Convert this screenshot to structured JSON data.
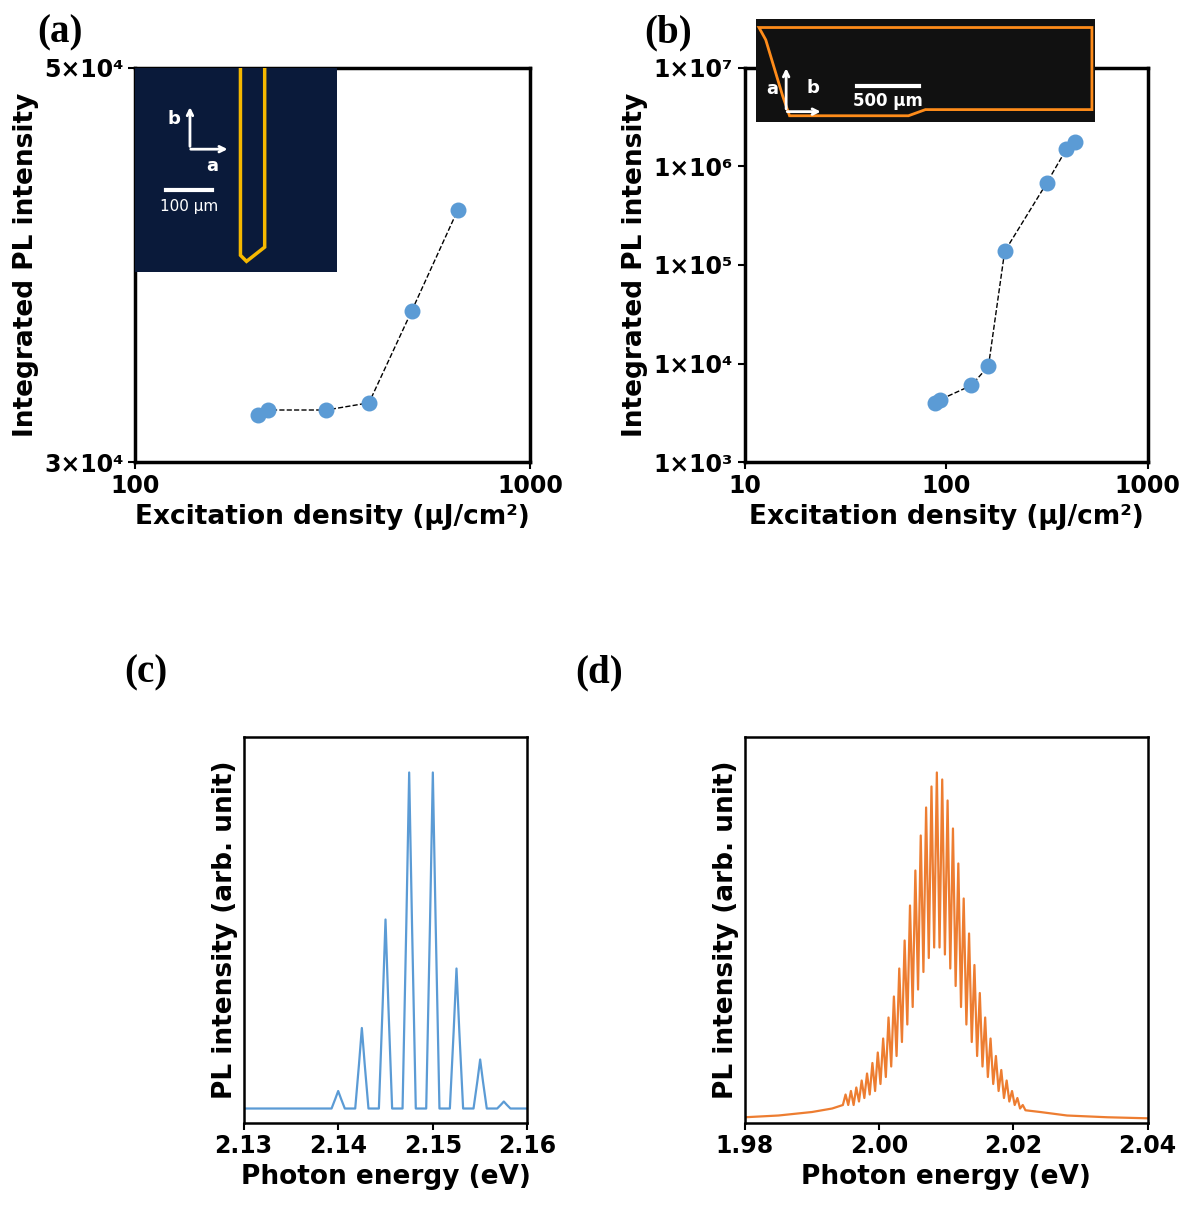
{
  "chart_data": [
    {
      "type": "scatter",
      "title": "(a)",
      "x_label": "Excitation density (µJ/cm²)",
      "y_label": "Integrated PL intensity",
      "log": true,
      "color": "#5B9BD5",
      "marker": "o",
      "line_style": "dashed",
      "x": [
        205,
        217,
        305,
        391,
        502,
        657
      ],
      "values": [
        31900,
        32100,
        32100,
        32400,
        36500,
        41600
      ],
      "xlim": [
        100,
        1000
      ],
      "xticks": [
        100,
        1000
      ],
      "ylim": [
        30000,
        50000
      ],
      "yticks": [
        {
          "value": 30000,
          "label": "3×10⁴"
        },
        {
          "value": 50000,
          "label": "5×10⁴"
        }
      ],
      "annotations": [
        "b",
        "a",
        "100 µm"
      ]
    },
    {
      "type": "scatter",
      "title": "(b)",
      "x_label": "Excitation density (µJ/cm²)",
      "y_label": "Integrated PL intensity",
      "log": true,
      "color": "#5B9BD5",
      "marker": "o",
      "line_style": "dashed",
      "x": [
        88,
        93,
        133,
        162,
        195,
        316,
        394,
        436
      ],
      "values": [
        3960,
        4300,
        6000,
        9400,
        137000,
        680000,
        1480000,
        1780000
      ],
      "xlim": [
        10,
        1000
      ],
      "xticks": [
        10,
        100,
        1000
      ],
      "ylim": [
        1000,
        10000000
      ],
      "yticks": [
        {
          "value": 1000,
          "label": "1×10³"
        },
        {
          "value": 10000,
          "label": "1×10⁴"
        },
        {
          "value": 100000,
          "label": "1×10⁵"
        },
        {
          "value": 1000000,
          "label": "1×10⁶"
        },
        {
          "value": 10000000,
          "label": "1×10⁷"
        }
      ],
      "annotations": [
        "a",
        "b",
        "500 µm"
      ]
    },
    {
      "type": "line",
      "title": "(c)",
      "x_label": "Photon energy (eV)",
      "y_label": "PL intensity (arb. unit)",
      "color": "#5B9BD5",
      "tick_labels": "x",
      "x": [
        2.13,
        2.1393,
        2.1397,
        2.14,
        2.1403,
        2.1407,
        2.1418,
        2.1422,
        2.1425,
        2.1428,
        2.1432,
        2.1443,
        2.1447,
        2.145,
        2.1453,
        2.1457,
        2.1468,
        2.1472,
        2.1475,
        2.1478,
        2.1482,
        2.1493,
        2.1497,
        2.15,
        2.1503,
        2.1507,
        2.1518,
        2.1522,
        2.1525,
        2.1528,
        2.1532,
        2.1543,
        2.1547,
        2.155,
        2.1553,
        2.1557,
        2.1568,
        2.1572,
        2.1575,
        2.1578,
        2.1582,
        2.16
      ],
      "values": [
        0.04,
        0.04,
        0.068,
        0.09,
        0.068,
        0.04,
        0.04,
        0.167,
        0.27,
        0.167,
        0.04,
        0.04,
        0.337,
        0.58,
        0.337,
        0.04,
        0.04,
        0.568,
        1.0,
        0.568,
        0.04,
        0.04,
        0.568,
        1.0,
        0.568,
        0.04,
        0.04,
        0.26,
        0.44,
        0.26,
        0.04,
        0.04,
        0.117,
        0.18,
        0.117,
        0.04,
        0.04,
        0.051,
        0.06,
        0.051,
        0.04,
        0.04
      ],
      "xlim": [
        2.13,
        2.16
      ],
      "xticks": [
        2.13,
        2.14,
        2.15,
        2.16
      ],
      "ylim": [
        0,
        1.1
      ]
    },
    {
      "type": "line",
      "title": "(d)",
      "x_label": "Photon energy (eV)",
      "y_label": "PL intensity (arb. unit)",
      "color": "#ED7D31",
      "tick_labels": "x",
      "x": [
        1.98,
        1.985,
        1.99,
        1.993,
        1.9946,
        1.995,
        1.9954,
        1.9958,
        1.9962,
        1.9966,
        1.997,
        1.9974,
        1.9978,
        1.9982,
        1.9986,
        1.999,
        1.9994,
        1.9998,
        2.0002,
        2.0006,
        2.001,
        2.0014,
        2.0018,
        2.0022,
        2.0026,
        2.003,
        2.0034,
        2.0038,
        2.0042,
        2.0046,
        2.005,
        2.0054,
        2.0058,
        2.0062,
        2.0066,
        2.007,
        2.0074,
        2.0078,
        2.0082,
        2.0086,
        2.009,
        2.0094,
        2.0098,
        2.0102,
        2.0106,
        2.011,
        2.0114,
        2.0118,
        2.0122,
        2.0126,
        2.013,
        2.0134,
        2.0138,
        2.0142,
        2.0146,
        2.015,
        2.0154,
        2.0158,
        2.0162,
        2.0166,
        2.017,
        2.0174,
        2.0178,
        2.0182,
        2.0186,
        2.019,
        2.0194,
        2.0198,
        2.0202,
        2.0206,
        2.021,
        2.0214,
        2.0218,
        2.024,
        2.028,
        2.034,
        2.04
      ],
      "values": [
        0.015,
        0.02,
        0.03,
        0.04,
        0.05,
        0.08,
        0.05,
        0.09,
        0.05,
        0.1,
        0.06,
        0.12,
        0.07,
        0.14,
        0.08,
        0.17,
        0.09,
        0.2,
        0.11,
        0.24,
        0.13,
        0.3,
        0.16,
        0.36,
        0.19,
        0.44,
        0.23,
        0.52,
        0.28,
        0.62,
        0.33,
        0.72,
        0.38,
        0.82,
        0.43,
        0.9,
        0.47,
        0.96,
        0.5,
        1.0,
        0.5,
        0.98,
        0.48,
        0.92,
        0.44,
        0.84,
        0.39,
        0.74,
        0.33,
        0.64,
        0.28,
        0.54,
        0.23,
        0.45,
        0.19,
        0.37,
        0.16,
        0.3,
        0.13,
        0.24,
        0.11,
        0.19,
        0.09,
        0.15,
        0.07,
        0.12,
        0.06,
        0.09,
        0.05,
        0.07,
        0.04,
        0.05,
        0.035,
        0.03,
        0.02,
        0.015,
        0.012
      ],
      "xlim": [
        1.98,
        2.04
      ],
      "xticks": [
        1.98,
        {
          "value": 2,
          "label": "2.00"
        },
        2.02,
        2.04
      ],
      "ylim": [
        0,
        1.1
      ]
    }
  ]
}
